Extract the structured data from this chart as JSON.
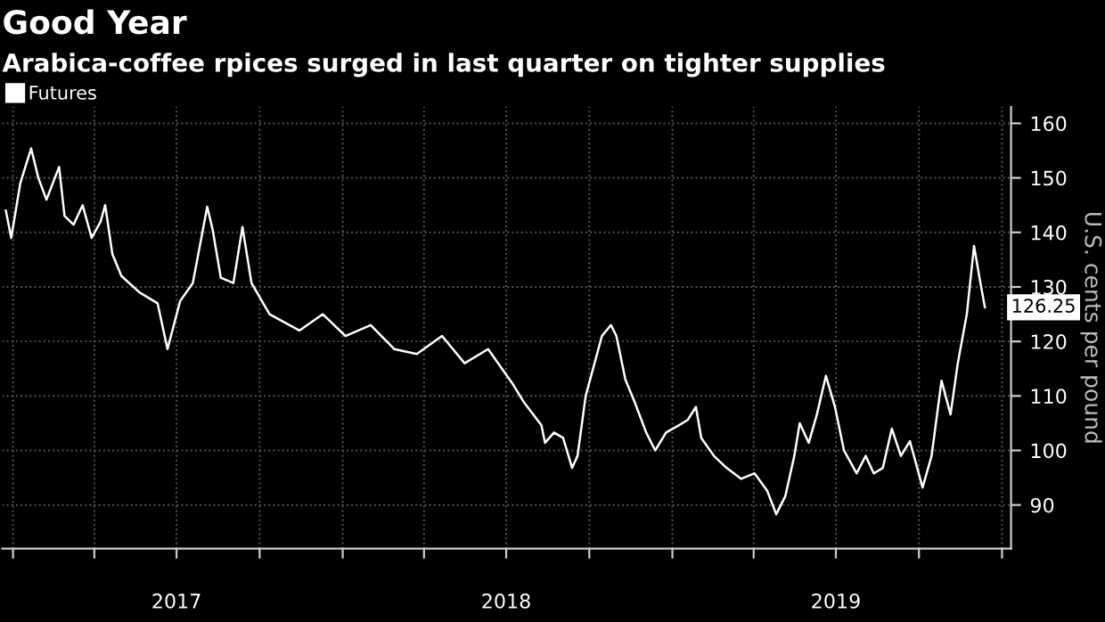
{
  "chart_data": {
    "type": "line",
    "title": "Good Year",
    "subtitle": "Arabica-coffee rpices surged in last quarter on tighter supplies",
    "ylabel": "U.S. cents per pound",
    "x": [
      "2016-12-24",
      "2016-12-30",
      "2017-01-09",
      "2017-01-21",
      "2017-01-29",
      "2017-02-07",
      "2017-02-21",
      "2017-02-27",
      "2017-03-09",
      "2017-03-19",
      "2017-03-29",
      "2017-04-08",
      "2017-04-13",
      "2017-04-21",
      "2017-05-01",
      "2017-05-21",
      "2017-06-10",
      "2017-06-21",
      "2017-07-05",
      "2017-07-19",
      "2017-08-04",
      "2017-08-10",
      "2017-08-19",
      "2017-09-02",
      "2017-09-12",
      "2017-09-22",
      "2017-10-12",
      "2017-11-14",
      "2017-12-10",
      "2018-01-04",
      "2018-02-01",
      "2018-02-27",
      "2018-03-24",
      "2018-04-21",
      "2018-05-16",
      "2018-06-11",
      "2018-07-09",
      "2018-07-20",
      "2018-08-09",
      "2018-08-13",
      "2018-08-23",
      "2018-09-02",
      "2018-09-12",
      "2018-09-18",
      "2018-09-27",
      "2018-10-15",
      "2018-10-25",
      "2018-10-31",
      "2018-11-10",
      "2018-11-20",
      "2018-12-03",
      "2018-12-13",
      "2018-12-25",
      "2019-01-08",
      "2019-01-18",
      "2019-01-27",
      "2019-02-02",
      "2019-02-16",
      "2019-03-02",
      "2019-03-18",
      "2019-04-02",
      "2019-04-16",
      "2019-04-26",
      "2019-05-06",
      "2019-05-16",
      "2019-05-22",
      "2019-06-01",
      "2019-06-10",
      "2019-06-20",
      "2019-06-30",
      "2019-07-10",
      "2019-07-24",
      "2019-08-03",
      "2019-08-12",
      "2019-08-22",
      "2019-09-01",
      "2019-09-11",
      "2019-09-21",
      "2019-10-05",
      "2019-10-15",
      "2019-10-26",
      "2019-11-05",
      "2019-11-13",
      "2019-11-23",
      "2019-12-01",
      "2019-12-07",
      "2019-12-13"
    ],
    "series": [
      {
        "name": "Futures",
        "color": "#ffffff",
        "values": [
          144,
          139,
          149,
          155.4,
          150,
          146,
          152,
          143,
          141.4,
          145,
          139,
          142,
          145,
          136,
          132,
          129,
          127,
          118.6,
          127.4,
          130.7,
          144.7,
          140.5,
          131.7,
          130.7,
          141,
          130.7,
          125,
          122,
          125,
          121,
          123,
          118.6,
          117.7,
          121,
          116,
          118.6,
          112,
          109,
          104.6,
          101.4,
          103.3,
          102.3,
          96.8,
          99,
          110,
          121,
          123,
          121,
          113,
          109,
          103.3,
          100,
          103.3,
          104.6,
          105.6,
          108,
          102.3,
          99,
          96.8,
          94.8,
          95.8,
          92.6,
          88.3,
          91.6,
          99,
          105,
          101.4,
          106.6,
          113.7,
          108,
          100,
          95.8,
          99,
          95.8,
          96.8,
          104,
          99,
          101.7,
          93.2,
          99,
          112.8,
          106.6,
          116,
          125,
          137.5,
          131.7,
          126.25
        ],
        "value_labels": [
          null,
          null,
          null,
          null,
          null,
          null,
          null,
          null,
          null,
          null,
          null,
          null,
          null,
          null,
          null,
          null,
          null,
          null,
          null,
          null,
          null,
          null,
          null,
          null,
          null,
          null,
          null,
          null,
          null,
          null,
          null,
          null,
          null,
          null,
          null,
          null,
          null,
          null,
          null,
          null,
          null,
          null,
          null,
          null,
          null,
          null,
          null,
          null,
          null,
          null,
          null,
          null,
          null,
          null,
          null,
          null,
          null,
          null,
          null,
          null,
          null,
          null,
          null,
          null,
          null,
          null,
          null,
          null,
          null,
          null,
          null,
          null,
          null,
          null,
          null,
          null,
          null,
          null,
          null,
          null,
          null,
          null,
          null,
          null,
          null,
          null,
          "126.25"
        ]
      }
    ],
    "xlim": [
      "2016-12-20",
      "2020-01-11"
    ],
    "xticks": [
      {
        "value": "2017-01-01",
        "label": null
      },
      {
        "value": "2017-04-01",
        "label": null
      },
      {
        "value": "2017-07-01",
        "label": "2017"
      },
      {
        "value": "2017-10-01",
        "label": null
      },
      {
        "value": "2018-01-01",
        "label": null
      },
      {
        "value": "2018-04-01",
        "label": null
      },
      {
        "value": "2018-07-01",
        "label": "2018"
      },
      {
        "value": "2018-10-01",
        "label": null
      },
      {
        "value": "2019-01-01",
        "label": null
      },
      {
        "value": "2019-04-01",
        "label": null
      },
      {
        "value": "2019-07-01",
        "label": "2019"
      },
      {
        "value": "2019-10-01",
        "label": null
      },
      {
        "value": "2020-01-01",
        "label": null
      }
    ],
    "ylim": [
      82,
      163
    ],
    "yticks": [
      90,
      100,
      110,
      120,
      130,
      140,
      150,
      160
    ],
    "grid": true,
    "legend": "top left",
    "marker": "none",
    "line_style": "solid"
  }
}
